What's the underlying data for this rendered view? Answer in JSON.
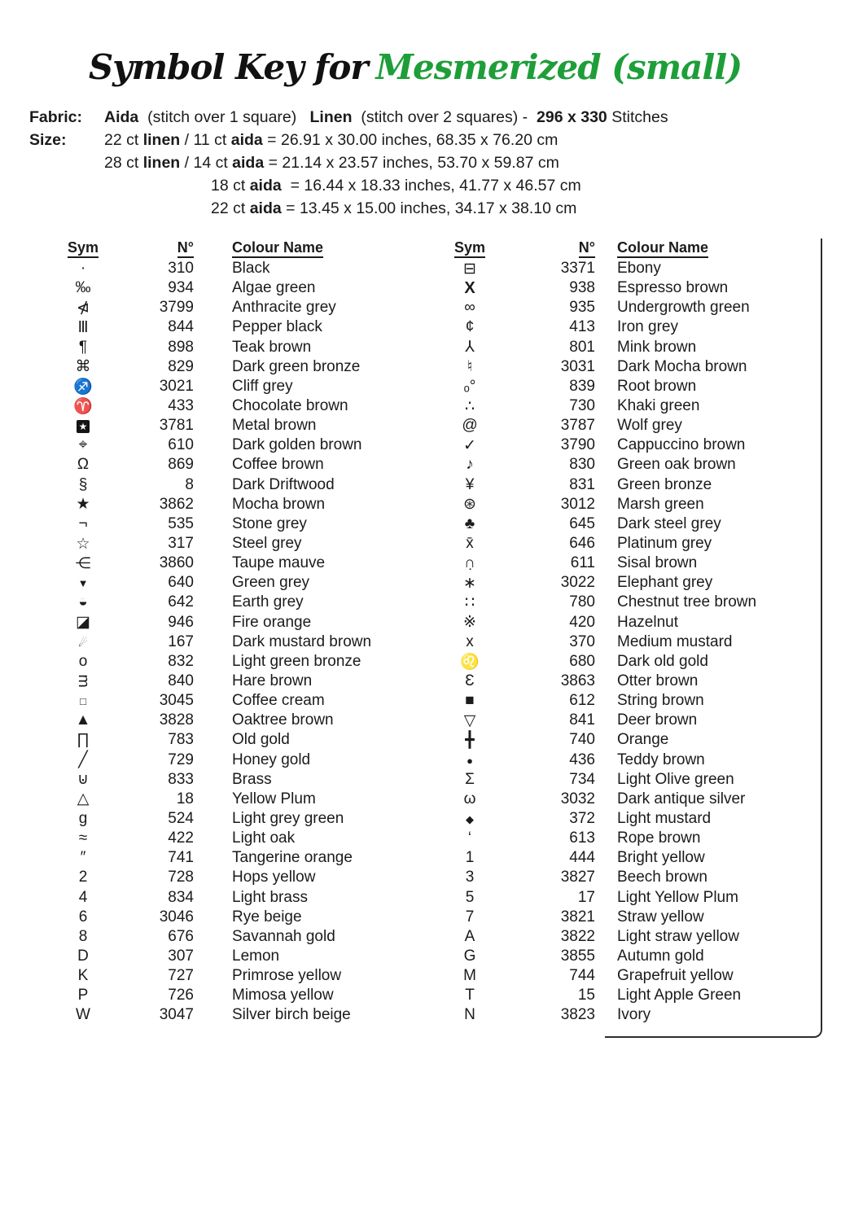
{
  "title": {
    "prefix": "Symbol Key for",
    "name": "Mesmerized (small)",
    "name_color": "#1e9e39",
    "text_color": "#111111"
  },
  "fabric": {
    "label": "Fabric:",
    "segments": [
      {
        "t": "Aida",
        "b": true
      },
      {
        "t": "  (stitch over 1 square)   "
      },
      {
        "t": "Linen",
        "b": true
      },
      {
        "t": "  (stitch over 2 squares) -  "
      },
      {
        "t": "296 x 330",
        "b": true
      },
      {
        "t": " Stitches"
      }
    ]
  },
  "size": {
    "label": "Size:",
    "lines": [
      {
        "indent": false,
        "segments": [
          {
            "t": "22 ct "
          },
          {
            "t": "linen",
            "b": true
          },
          {
            "t": " / 11 ct "
          },
          {
            "t": "aida",
            "b": true
          },
          {
            "t": " = 26.91 x 30.00 inches, 68.35 x 76.20 cm"
          }
        ]
      },
      {
        "indent": false,
        "segments": [
          {
            "t": "28 ct "
          },
          {
            "t": "linen",
            "b": true
          },
          {
            "t": " / 14 ct "
          },
          {
            "t": "aida",
            "b": true
          },
          {
            "t": " = 21.14 x 23.57 inches, 53.70 x 59.87 cm"
          }
        ]
      },
      {
        "indent": true,
        "segments": [
          {
            "t": "18 ct "
          },
          {
            "t": "aida",
            "b": true
          },
          {
            "t": "  = 16.44 x 18.33 inches, 41.77 x 46.57 cm"
          }
        ]
      },
      {
        "indent": true,
        "segments": [
          {
            "t": "22 ct "
          },
          {
            "t": "aida",
            "b": true
          },
          {
            "t": " = 13.45 x 15.00 inches, 34.17 x 38.10 cm"
          }
        ]
      }
    ]
  },
  "table": {
    "headers": {
      "sym": "Sym",
      "num": "N°",
      "name": "Colour Name"
    },
    "columns": [
      {
        "rows": [
          {
            "sym": "·",
            "num": "310",
            "name": "Black"
          },
          {
            "sym": "‰",
            "num": "934",
            "name": "Algae green"
          },
          {
            "sym": "⋪",
            "num": "3799",
            "name": "Anthracite grey"
          },
          {
            "sym": "Ⅲ",
            "num": "844",
            "name": "Pepper black"
          },
          {
            "sym": "¶",
            "num": "898",
            "name": "Teak brown"
          },
          {
            "sym": "⌘",
            "num": "829",
            "name": "Dark green bronze"
          },
          {
            "sym": "♐",
            "num": "3021",
            "name": "Cliff grey"
          },
          {
            "sym": "♈",
            "num": "433",
            "name": "Chocolate brown"
          },
          {
            "sym": "★",
            "num": "3781",
            "name": "Metal brown",
            "cls": "inverse"
          },
          {
            "sym": "⌖",
            "num": "610",
            "name": "Dark golden brown"
          },
          {
            "sym": "Ω",
            "num": "869",
            "name": "Coffee brown"
          },
          {
            "sym": "§",
            "num": "8",
            "name": "Dark Driftwood"
          },
          {
            "sym": "★",
            "num": "3862",
            "name": "Mocha brown"
          },
          {
            "sym": "¬",
            "num": "535",
            "name": "Stone grey"
          },
          {
            "sym": "☆",
            "num": "317",
            "name": "Steel grey"
          },
          {
            "sym": "⋲",
            "num": "3860",
            "name": "Taupe mauve"
          },
          {
            "sym": "▼",
            "num": "640",
            "name": "Green grey",
            "cls": "sm"
          },
          {
            "sym": "◒",
            "num": "642",
            "name": "Earth grey"
          },
          {
            "sym": "◪",
            "num": "946",
            "name": "Fire orange"
          },
          {
            "sym": "☄",
            "num": "167",
            "name": "Dark mustard brown",
            "cls": "sm"
          },
          {
            "sym": "o",
            "num": "832",
            "name": "Light green bronze"
          },
          {
            "sym": "ᴟ",
            "num": "840",
            "name": "Hare brown"
          },
          {
            "sym": "□",
            "num": "3045",
            "name": "Coffee cream",
            "cls": "sm"
          },
          {
            "sym": "▲",
            "num": "3828",
            "name": "Oaktree brown"
          },
          {
            "sym": "∏",
            "num": "783",
            "name": "Old gold"
          },
          {
            "sym": "╱",
            "num": "729",
            "name": "Honey gold"
          },
          {
            "sym": "⊍",
            "num": "833",
            "name": "Brass"
          },
          {
            "sym": "△",
            "num": "18",
            "name": "Yellow Plum"
          },
          {
            "sym": "g",
            "num": "524",
            "name": "Light grey green"
          },
          {
            "sym": "≈",
            "num": "422",
            "name": "Light oak"
          },
          {
            "sym": "″",
            "num": "741",
            "name": "Tangerine orange"
          },
          {
            "sym": "2",
            "num": "728",
            "name": "Hops yellow"
          },
          {
            "sym": "4",
            "num": "834",
            "name": "Light brass"
          },
          {
            "sym": "6",
            "num": "3046",
            "name": "Rye beige"
          },
          {
            "sym": "8",
            "num": "676",
            "name": "Savannah gold"
          },
          {
            "sym": "D",
            "num": "307",
            "name": "Lemon"
          },
          {
            "sym": "K",
            "num": "727",
            "name": "Primrose yellow"
          },
          {
            "sym": "P",
            "num": "726",
            "name": "Mimosa yellow"
          },
          {
            "sym": "W",
            "num": "3047",
            "name": "Silver birch beige"
          }
        ]
      },
      {
        "rows": [
          {
            "sym": "⊟",
            "num": "3371",
            "name": "Ebony"
          },
          {
            "sym": "X",
            "num": "938",
            "name": "Espresso brown",
            "cls": "bold"
          },
          {
            "sym": "∞",
            "num": "935",
            "name": "Undergrowth green"
          },
          {
            "sym": "¢",
            "num": "413",
            "name": "Iron grey"
          },
          {
            "sym": "⅄",
            "num": "801",
            "name": "Mink brown"
          },
          {
            "sym": "♮",
            "num": "3031",
            "name": "Dark Mocha brown"
          },
          {
            "sym": "ₒ°",
            "num": "839",
            "name": "Root brown"
          },
          {
            "sym": "∴",
            "num": "730",
            "name": "Khaki green"
          },
          {
            "sym": "@",
            "num": "3787",
            "name": "Wolf grey"
          },
          {
            "sym": "✓",
            "num": "3790",
            "name": "Cappuccino brown"
          },
          {
            "sym": "♪",
            "num": "830",
            "name": "Green oak brown"
          },
          {
            "sym": "¥",
            "num": "831",
            "name": "Green bronze"
          },
          {
            "sym": "⊛",
            "num": "3012",
            "name": "Marsh green"
          },
          {
            "sym": "♣",
            "num": "645",
            "name": "Dark steel grey"
          },
          {
            "sym": "x̄",
            "num": "646",
            "name": "Platinum grey"
          },
          {
            "sym": "∩̣",
            "num": "611",
            "name": "Sisal brown"
          },
          {
            "sym": "∗",
            "num": "3022",
            "name": "Elephant grey"
          },
          {
            "sym": "∷",
            "num": "780",
            "name": "Chestnut tree brown"
          },
          {
            "sym": "※",
            "num": "420",
            "name": "Hazelnut"
          },
          {
            "sym": "x",
            "num": "370",
            "name": "Medium mustard"
          },
          {
            "sym": "♌",
            "num": "680",
            "name": "Dark old gold"
          },
          {
            "sym": "Ɛ",
            "num": "3863",
            "name": "Otter brown"
          },
          {
            "sym": "■",
            "num": "612",
            "name": "String brown"
          },
          {
            "sym": "▽",
            "num": "841",
            "name": "Deer brown"
          },
          {
            "sym": "╋",
            "num": "740",
            "name": "Orange"
          },
          {
            "sym": "●",
            "num": "436",
            "name": "Teddy brown",
            "cls": "sm"
          },
          {
            "sym": "Σ",
            "num": "734",
            "name": "Light Olive green"
          },
          {
            "sym": "ω",
            "num": "3032",
            "name": "Dark antique silver"
          },
          {
            "sym": "◆",
            "num": "372",
            "name": "Light mustard",
            "cls": "sm"
          },
          {
            "sym": "‘",
            "num": "613",
            "name": "Rope brown"
          },
          {
            "sym": "1",
            "num": "444",
            "name": "Bright yellow"
          },
          {
            "sym": "3",
            "num": "3827",
            "name": "Beech brown"
          },
          {
            "sym": "5",
            "num": "17",
            "name": "Light Yellow Plum"
          },
          {
            "sym": "7",
            "num": "3821",
            "name": "Straw yellow"
          },
          {
            "sym": "A",
            "num": "3822",
            "name": "Light straw yellow"
          },
          {
            "sym": "G",
            "num": "3855",
            "name": "Autumn gold"
          },
          {
            "sym": "M",
            "num": "744",
            "name": "Grapefruit yellow"
          },
          {
            "sym": "T",
            "num": "15",
            "name": "Light Apple Green"
          },
          {
            "sym": "N",
            "num": "3823",
            "name": "Ivory"
          }
        ]
      }
    ]
  }
}
